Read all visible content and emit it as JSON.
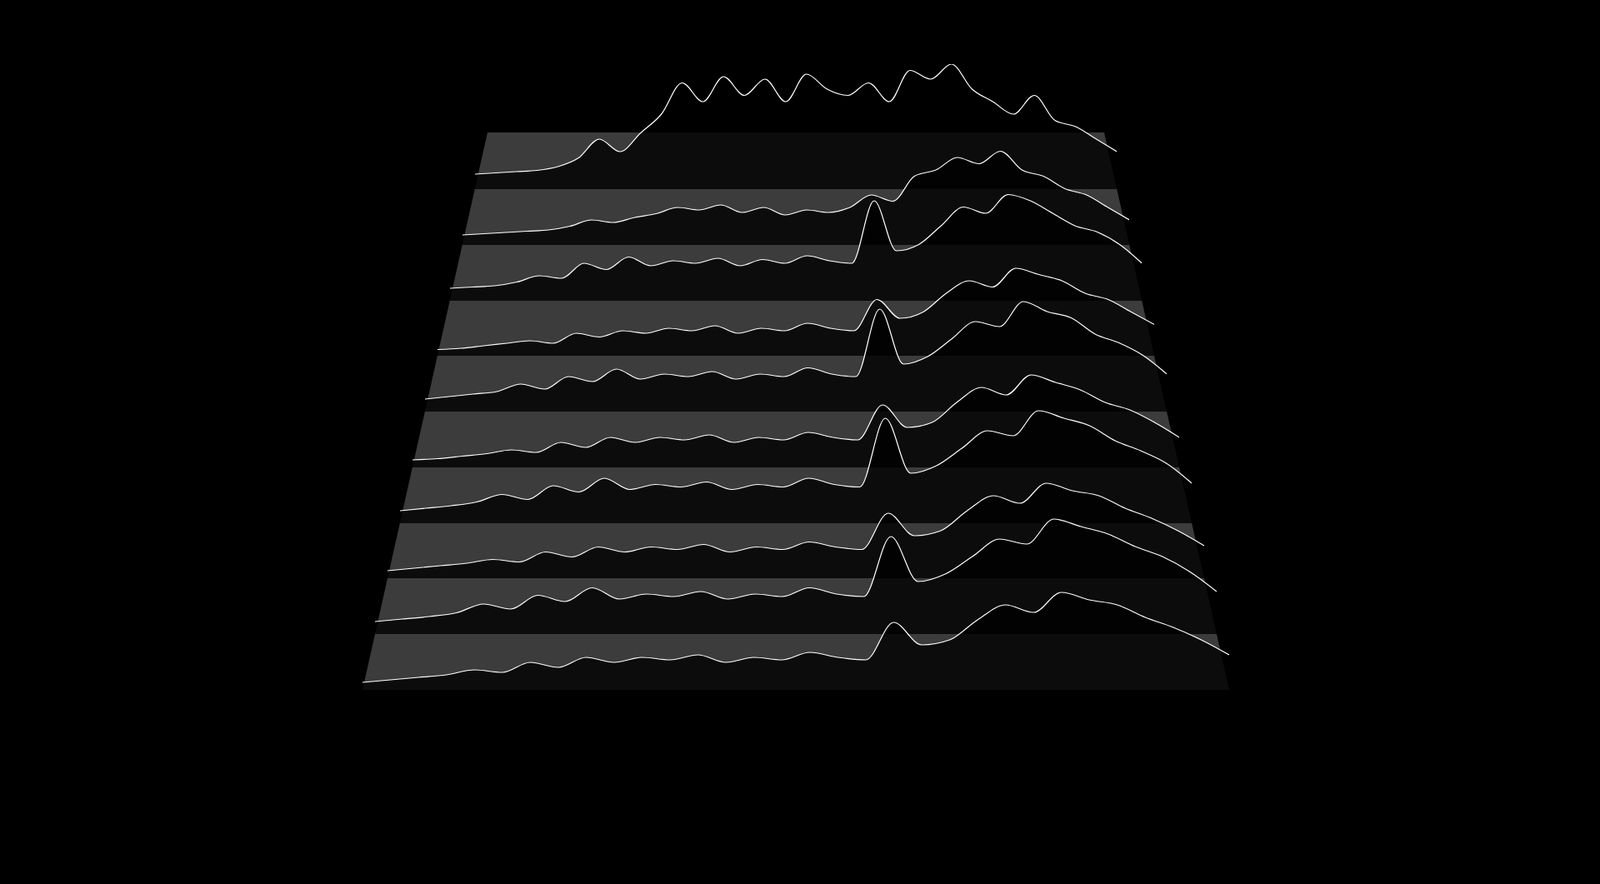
{
  "chart_data": {
    "type": "ridgeline",
    "tick_labels": false,
    "color": "#ffffff",
    "xlim": [
      0,
      31
    ],
    "ylim": [
      0,
      100
    ],
    "x": [
      0,
      1,
      2,
      3,
      4,
      5,
      6,
      7,
      8,
      9,
      10,
      11,
      12,
      13,
      14,
      15,
      16,
      17,
      18,
      19,
      20,
      21,
      22,
      23,
      24,
      25,
      26,
      27,
      28,
      29,
      30,
      31
    ],
    "series": [
      {
        "values": [
          12,
          13,
          14,
          15,
          18,
          25,
          40,
          30,
          45,
          60,
          85,
          70,
          90,
          75,
          88,
          70,
          92,
          80,
          75,
          85,
          70,
          95,
          88,
          100,
          80,
          70,
          60,
          75,
          55,
          50,
          40,
          30
        ]
      },
      {
        "values": [
          8,
          9,
          10,
          11,
          12,
          15,
          20,
          18,
          22,
          25,
          30,
          28,
          32,
          26,
          30,
          24,
          28,
          26,
          30,
          40,
          35,
          55,
          60,
          70,
          65,
          75,
          60,
          55,
          45,
          40,
          30,
          20
        ]
      },
      {
        "values": [
          10,
          11,
          12,
          15,
          20,
          18,
          30,
          25,
          35,
          28,
          32,
          30,
          34,
          28,
          33,
          30,
          36,
          32,
          30,
          80,
          40,
          45,
          60,
          75,
          70,
          85,
          80,
          70,
          60,
          55,
          45,
          30
        ]
      },
      {
        "values": [
          5,
          6,
          8,
          10,
          12,
          10,
          18,
          15,
          20,
          18,
          22,
          20,
          24,
          18,
          22,
          20,
          26,
          22,
          20,
          45,
          30,
          35,
          50,
          60,
          55,
          70,
          65,
          60,
          50,
          45,
          35,
          25
        ]
      },
      {
        "values": [
          10,
          12,
          14,
          16,
          22,
          18,
          28,
          24,
          34,
          26,
          30,
          28,
          32,
          26,
          30,
          28,
          35,
          30,
          28,
          82,
          38,
          44,
          58,
          72,
          68,
          88,
          80,
          75,
          62,
          55,
          45,
          30
        ]
      },
      {
        "values": [
          6,
          7,
          9,
          11,
          14,
          12,
          20,
          16,
          24,
          20,
          24,
          22,
          26,
          20,
          24,
          22,
          28,
          24,
          22,
          50,
          32,
          36,
          52,
          64,
          58,
          74,
          68,
          62,
          52,
          46,
          36,
          24
        ]
      },
      {
        "values": [
          10,
          12,
          14,
          17,
          23,
          19,
          30,
          25,
          36,
          27,
          31,
          29,
          33,
          27,
          31,
          29,
          36,
          31,
          29,
          84,
          40,
          46,
          60,
          74,
          70,
          90,
          84,
          78,
          66,
          58,
          48,
          32
        ]
      },
      {
        "values": [
          6,
          8,
          10,
          12,
          15,
          13,
          21,
          17,
          25,
          21,
          25,
          23,
          27,
          21,
          25,
          23,
          29,
          25,
          23,
          52,
          34,
          38,
          54,
          66,
          60,
          76,
          70,
          66,
          56,
          48,
          38,
          26
        ]
      },
      {
        "values": [
          10,
          12,
          14,
          17,
          24,
          20,
          31,
          26,
          37,
          28,
          32,
          30,
          34,
          28,
          32,
          30,
          37,
          32,
          30,
          78,
          42,
          48,
          62,
          76,
          72,
          92,
          86,
          80,
          70,
          62,
          50,
          34
        ]
      },
      {
        "values": [
          6,
          8,
          10,
          12,
          16,
          14,
          22,
          18,
          26,
          22,
          26,
          24,
          28,
          22,
          26,
          24,
          30,
          26,
          24,
          54,
          36,
          40,
          56,
          68,
          62,
          78,
          72,
          68,
          58,
          50,
          40,
          28
        ]
      }
    ]
  }
}
